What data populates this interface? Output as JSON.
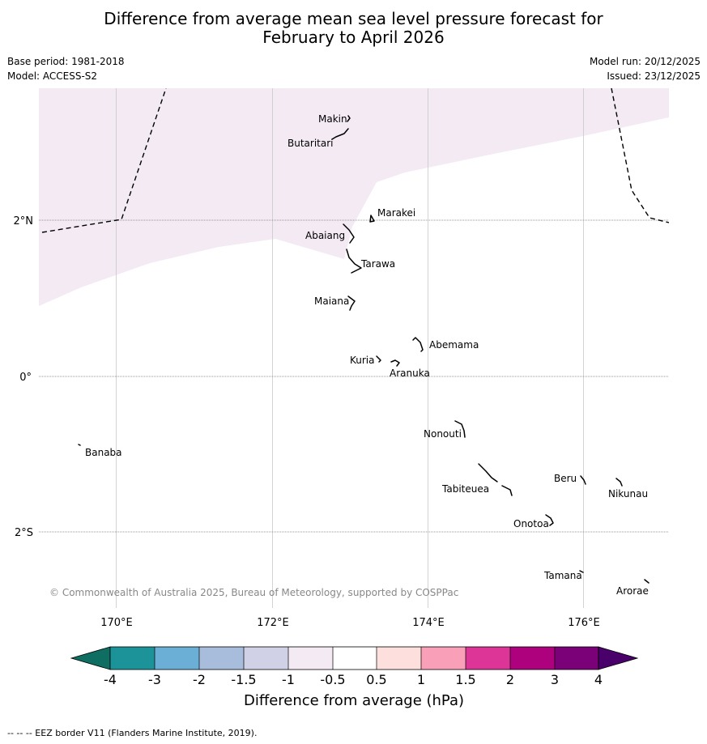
{
  "header": {
    "title_line1": "Difference from average mean sea level pressure forecast for",
    "title_line2": "February to April 2026",
    "base_period": "Base period: 1981-2018",
    "model": "Model: ACCESS-S2",
    "model_run": "Model run: 20/12/2025",
    "issued": "Issued: 23/12/2025"
  },
  "map": {
    "lon_ticks": [
      "170°E",
      "172°E",
      "174°E",
      "176°E"
    ],
    "lat_ticks": [
      "2°N",
      "0°",
      "2°S"
    ],
    "islands": [
      "Makin",
      "Butaritari",
      "Marakei",
      "Abaiang",
      "Tarawa",
      "Maiana",
      "Abemama",
      "Kuria",
      "Aranuka",
      "Banaba",
      "Nonouti",
      "Tabiteuea",
      "Beru",
      "Nikunau",
      "Onotoa",
      "Tamana",
      "Arorae"
    ],
    "copyright": "© Commonwealth of Australia 2025, Bureau of Meteorology, supported by COSPPac",
    "shaded_anomaly_class": "-1 to -0.5",
    "shade_color": "#f3eaf4"
  },
  "colorbar": {
    "label": "Difference from average (hPa)",
    "tick_labels": [
      "-4",
      "-3",
      "-2",
      "-1.5",
      "-1",
      "-0.5",
      "0.5",
      "1",
      "1.5",
      "2",
      "3",
      "4"
    ],
    "colors": [
      "#1c9399",
      "#6baed6",
      "#a8bddb",
      "#d0d1e6",
      "#f3eaf4",
      "#ffffff",
      "#fde0dd",
      "#f99fb8",
      "#dd3497",
      "#ae017e",
      "#7a0177"
    ],
    "low_extend_color": "#0f6e62",
    "high_extend_color": "#49006a"
  },
  "footer": {
    "eez_note": "--  --  -- EEZ border V11 (Flanders Marine Institute, 2019)."
  }
}
